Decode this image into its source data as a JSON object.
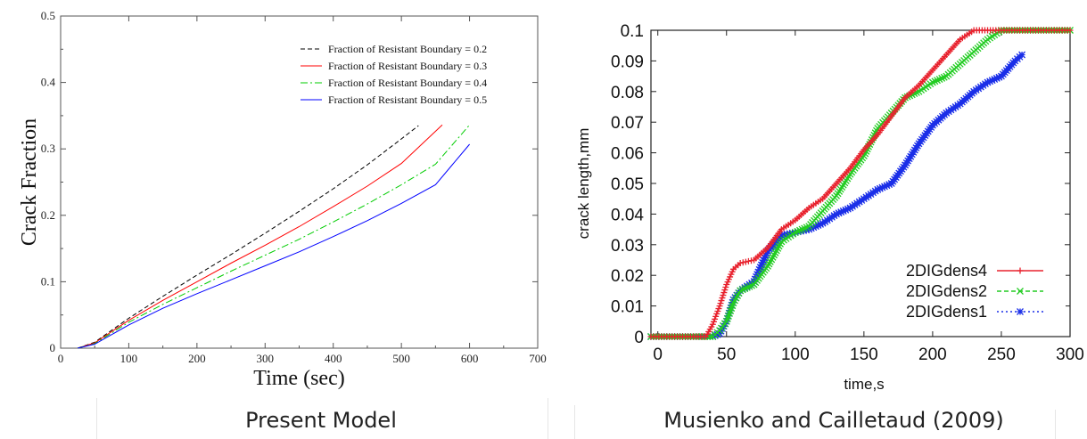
{
  "captions": {
    "left": "Present Model",
    "right": "Musienko and Cailletaud (2009)"
  },
  "chart_data": [
    {
      "type": "line",
      "title": "",
      "xlabel": "Time (sec)",
      "ylabel": "Crack Fraction",
      "xlim": [
        0,
        700
      ],
      "ylim": [
        0,
        0.5
      ],
      "xticks": [
        0,
        100,
        200,
        300,
        400,
        500,
        600,
        700
      ],
      "yticks": [
        0,
        0.1,
        0.2,
        0.3,
        0.4,
        0.5
      ],
      "xtick_labels": [
        "0",
        "100",
        "200",
        "300",
        "400",
        "500",
        "600",
        "700"
      ],
      "ytick_labels": [
        "0",
        "0.1",
        "0.2",
        "0.3",
        "0.4",
        "0.5"
      ],
      "grid": false,
      "legend_position": "top-right",
      "series": [
        {
          "name": "Fraction of Resistant Boundary = 0.2",
          "color": "#000000",
          "dash": "dashed",
          "x": [
            25,
            50,
            100,
            150,
            200,
            250,
            300,
            350,
            400,
            450,
            500,
            525
          ],
          "y": [
            0,
            0.009,
            0.045,
            0.078,
            0.11,
            0.141,
            0.173,
            0.206,
            0.24,
            0.276,
            0.315,
            0.335
          ]
        },
        {
          "name": "Fraction of Resistant Boundary = 0.3",
          "color": "#ff0000",
          "dash": "solid",
          "x": [
            25,
            50,
            100,
            150,
            200,
            250,
            300,
            350,
            400,
            450,
            500,
            560
          ],
          "y": [
            0,
            0.008,
            0.042,
            0.072,
            0.1,
            0.128,
            0.155,
            0.183,
            0.213,
            0.244,
            0.278,
            0.336
          ]
        },
        {
          "name": "Fraction of Resistant Boundary = 0.4",
          "color": "#00cc00",
          "dash": "dashdot",
          "x": [
            25,
            50,
            100,
            150,
            200,
            250,
            300,
            350,
            400,
            450,
            500,
            550,
            600
          ],
          "y": [
            0,
            0.007,
            0.039,
            0.066,
            0.091,
            0.116,
            0.14,
            0.164,
            0.19,
            0.217,
            0.246,
            0.277,
            0.336
          ]
        },
        {
          "name": "Fraction of Resistant Boundary = 0.5",
          "color": "#0000ff",
          "dash": "solid",
          "x": [
            25,
            50,
            100,
            150,
            200,
            250,
            300,
            350,
            400,
            450,
            500,
            550,
            600
          ],
          "y": [
            0,
            0.006,
            0.035,
            0.06,
            0.082,
            0.103,
            0.124,
            0.145,
            0.168,
            0.192,
            0.218,
            0.246,
            0.307
          ]
        }
      ]
    },
    {
      "type": "line",
      "title": "",
      "xlabel": "time,s",
      "ylabel": "crack length,mm",
      "xlim": [
        -5,
        300
      ],
      "ylim": [
        0,
        0.1
      ],
      "xticks": [
        0,
        50,
        100,
        150,
        200,
        250,
        300
      ],
      "yticks": [
        0,
        0.01,
        0.02,
        0.03,
        0.04,
        0.05,
        0.06,
        0.07,
        0.08,
        0.09,
        0.1
      ],
      "xtick_labels": [
        "0",
        "50",
        "100",
        "150",
        "200",
        "250",
        "300"
      ],
      "ytick_labels": [
        "0",
        "0.01",
        "0.02",
        "0.03",
        "0.04",
        "0.05",
        "0.06",
        "0.07",
        "0.08",
        "0.09",
        "0.1"
      ],
      "grid": false,
      "legend_position": "bottom-right",
      "series": [
        {
          "name": "2DIGdens4",
          "color": "#e8222e",
          "marker": "plus",
          "x": [
            -5,
            20,
            35,
            40,
            45,
            50,
            55,
            60,
            70,
            80,
            90,
            100,
            110,
            120,
            130,
            140,
            150,
            160,
            170,
            180,
            190,
            200,
            210,
            220,
            230,
            250,
            300
          ],
          "y": [
            0,
            0,
            0,
            0.004,
            0.01,
            0.017,
            0.022,
            0.024,
            0.025,
            0.029,
            0.035,
            0.038,
            0.042,
            0.045,
            0.05,
            0.055,
            0.061,
            0.066,
            0.072,
            0.078,
            0.082,
            0.087,
            0.092,
            0.097,
            0.1,
            0.1,
            0.1
          ]
        },
        {
          "name": "2DIGdens2",
          "color": "#22cc22",
          "marker": "x",
          "x": [
            -5,
            20,
            40,
            45,
            50,
            55,
            60,
            70,
            80,
            90,
            100,
            110,
            120,
            130,
            140,
            150,
            160,
            170,
            180,
            190,
            200,
            210,
            220,
            230,
            240,
            250,
            300
          ],
          "y": [
            0,
            0,
            0,
            0.002,
            0.005,
            0.011,
            0.015,
            0.017,
            0.023,
            0.031,
            0.034,
            0.036,
            0.041,
            0.046,
            0.053,
            0.059,
            0.068,
            0.073,
            0.078,
            0.08,
            0.083,
            0.085,
            0.089,
            0.093,
            0.097,
            0.1,
            0.1
          ]
        },
        {
          "name": "2DIGdens1",
          "color": "#1a2ee8",
          "marker": "asterisk",
          "x": [
            -5,
            20,
            40,
            45,
            50,
            55,
            60,
            70,
            80,
            90,
            100,
            110,
            120,
            130,
            140,
            150,
            160,
            170,
            180,
            190,
            200,
            210,
            220,
            230,
            240,
            250,
            260,
            265
          ],
          "y": [
            0,
            0,
            0,
            0.001,
            0.005,
            0.012,
            0.015,
            0.018,
            0.028,
            0.033,
            0.034,
            0.035,
            0.037,
            0.04,
            0.042,
            0.045,
            0.048,
            0.05,
            0.056,
            0.063,
            0.069,
            0.073,
            0.076,
            0.08,
            0.083,
            0.085,
            0.09,
            0.092
          ]
        }
      ]
    }
  ]
}
